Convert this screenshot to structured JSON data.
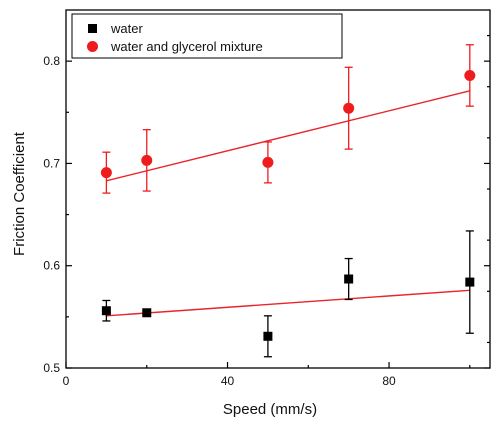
{
  "chart_data": {
    "type": "scatter",
    "xlabel": "Speed (mm/s)",
    "ylabel": "Friction Coefficient",
    "xlim": [
      0,
      105
    ],
    "ylim": [
      0.5,
      0.85
    ],
    "xticks": [
      0,
      40,
      80
    ],
    "xtick_labels": [
      "0",
      "40",
      "80"
    ],
    "yticks": [
      0.5,
      0.6,
      0.7,
      0.8
    ],
    "ytick_labels": [
      "0.5",
      "0.6",
      "0.7",
      "0.8"
    ],
    "legend_position": "top-left",
    "series": [
      {
        "name": "water",
        "marker": "square",
        "color": "#000000",
        "x": [
          10,
          20,
          50,
          70,
          100
        ],
        "y": [
          0.556,
          0.554,
          0.531,
          0.587,
          0.584
        ],
        "yerr": [
          0.01,
          0.003,
          0.02,
          0.02,
          0.05
        ],
        "fit": {
          "x": [
            10,
            100
          ],
          "y": [
            0.551,
            0.576
          ],
          "color": "#e8252a"
        }
      },
      {
        "name": "water and glycerol mixture",
        "marker": "circle",
        "color": "#ee1c1c",
        "x": [
          10,
          20,
          50,
          70,
          100
        ],
        "y": [
          0.691,
          0.703,
          0.701,
          0.754,
          0.786
        ],
        "yerr": [
          0.02,
          0.03,
          0.02,
          0.04,
          0.03
        ],
        "fit": {
          "x": [
            10,
            100
          ],
          "y": [
            0.683,
            0.771
          ],
          "color": "#e8252a"
        }
      }
    ]
  }
}
